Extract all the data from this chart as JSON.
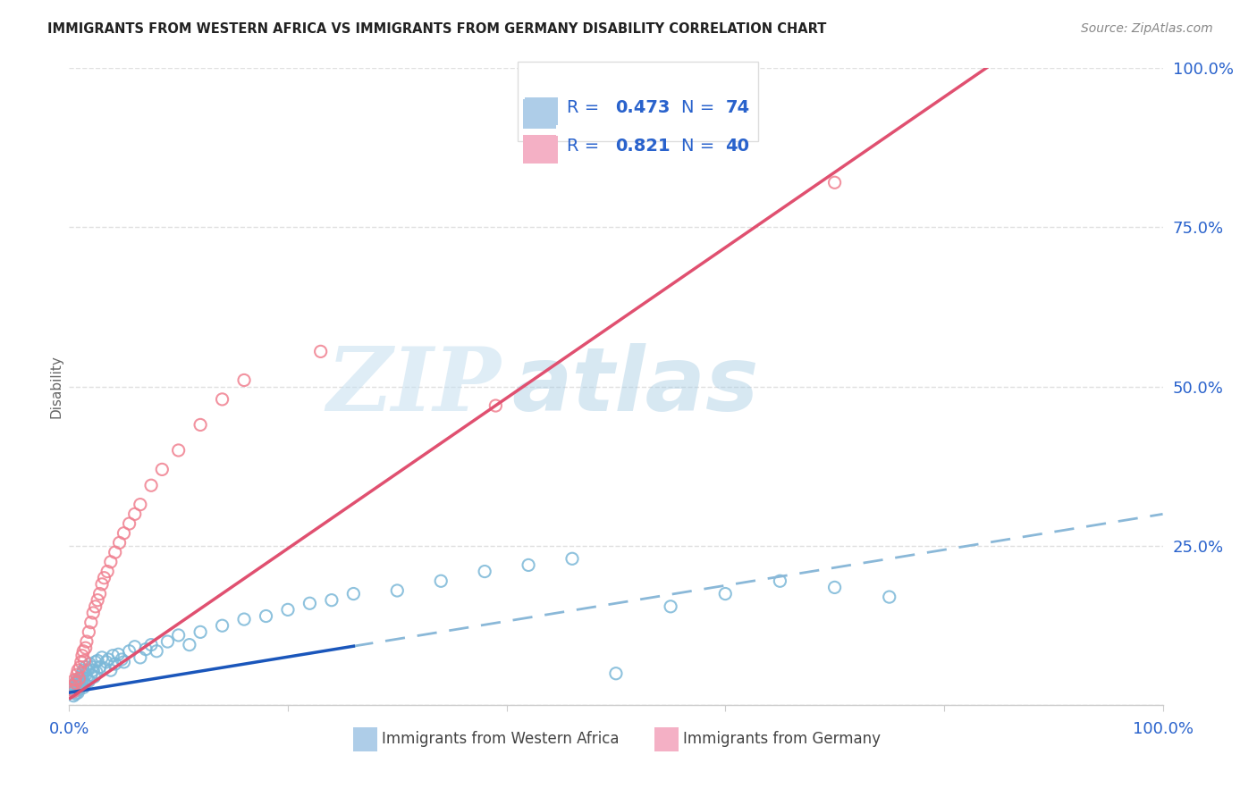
{
  "title": "IMMIGRANTS FROM WESTERN AFRICA VS IMMIGRANTS FROM GERMANY DISABILITY CORRELATION CHART",
  "source": "Source: ZipAtlas.com",
  "ylabel": "Disability",
  "series1_label": "Immigrants from Western Africa",
  "series1_color": "#7bb8d8",
  "series2_label": "Immigrants from Germany",
  "series2_color": "#f08090",
  "series1_R": "0.473",
  "series1_N": "74",
  "series2_R": "0.821",
  "series2_N": "40",
  "legend_text_color": "#2962cc",
  "title_color": "#222222",
  "source_color": "#888888",
  "axis_color": "#2962cc",
  "grid_color": "#e0e0e0",
  "watermark_zip": "ZIP",
  "watermark_atlas": "atlas",
  "watermark_color_zip": "#c8dff0",
  "watermark_color_atlas": "#b0d0e8",
  "line1_solid_color": "#1a56bb",
  "line1_dash_color": "#8ab8d8",
  "line2_color": "#e05070",
  "line1_slope": 0.28,
  "line1_intercept": 0.02,
  "line2_slope": 1.18,
  "line2_intercept": 0.01,
  "line1_solid_end": 0.26,
  "line1_dash_end": 1.0,
  "line2_end": 0.84,
  "xlim": [
    0,
    1.0
  ],
  "ylim": [
    0,
    1.0
  ],
  "blue_x": [
    0.002,
    0.003,
    0.004,
    0.005,
    0.005,
    0.006,
    0.006,
    0.007,
    0.007,
    0.008,
    0.008,
    0.009,
    0.009,
    0.01,
    0.01,
    0.011,
    0.011,
    0.012,
    0.012,
    0.013,
    0.013,
    0.014,
    0.015,
    0.015,
    0.016,
    0.017,
    0.018,
    0.019,
    0.02,
    0.021,
    0.022,
    0.023,
    0.024,
    0.025,
    0.026,
    0.028,
    0.03,
    0.032,
    0.034,
    0.036,
    0.038,
    0.04,
    0.042,
    0.045,
    0.048,
    0.05,
    0.055,
    0.06,
    0.065,
    0.07,
    0.075,
    0.08,
    0.09,
    0.1,
    0.11,
    0.12,
    0.14,
    0.16,
    0.18,
    0.2,
    0.22,
    0.24,
    0.26,
    0.3,
    0.34,
    0.38,
    0.42,
    0.46,
    0.5,
    0.55,
    0.6,
    0.65,
    0.7,
    0.75
  ],
  "blue_y": [
    0.02,
    0.025,
    0.015,
    0.03,
    0.022,
    0.035,
    0.018,
    0.028,
    0.04,
    0.032,
    0.02,
    0.038,
    0.025,
    0.042,
    0.03,
    0.045,
    0.035,
    0.038,
    0.05,
    0.028,
    0.055,
    0.032,
    0.048,
    0.06,
    0.042,
    0.055,
    0.038,
    0.065,
    0.048,
    0.06,
    0.055,
    0.045,
    0.068,
    0.052,
    0.07,
    0.06,
    0.075,
    0.058,
    0.068,
    0.072,
    0.055,
    0.078,
    0.065,
    0.08,
    0.072,
    0.068,
    0.085,
    0.092,
    0.075,
    0.088,
    0.095,
    0.085,
    0.1,
    0.11,
    0.095,
    0.115,
    0.125,
    0.135,
    0.14,
    0.15,
    0.16,
    0.165,
    0.175,
    0.18,
    0.195,
    0.21,
    0.22,
    0.23,
    0.05,
    0.155,
    0.175,
    0.195,
    0.185,
    0.17
  ],
  "pink_x": [
    0.002,
    0.003,
    0.004,
    0.005,
    0.006,
    0.007,
    0.008,
    0.009,
    0.01,
    0.011,
    0.012,
    0.013,
    0.014,
    0.015,
    0.016,
    0.018,
    0.02,
    0.022,
    0.024,
    0.026,
    0.028,
    0.03,
    0.032,
    0.035,
    0.038,
    0.042,
    0.046,
    0.05,
    0.055,
    0.06,
    0.065,
    0.075,
    0.085,
    0.1,
    0.12,
    0.14,
    0.16,
    0.23,
    0.39,
    0.7
  ],
  "pink_y": [
    0.025,
    0.03,
    0.022,
    0.04,
    0.035,
    0.048,
    0.055,
    0.042,
    0.06,
    0.068,
    0.078,
    0.085,
    0.07,
    0.09,
    0.1,
    0.115,
    0.13,
    0.145,
    0.155,
    0.165,
    0.175,
    0.19,
    0.2,
    0.21,
    0.225,
    0.24,
    0.255,
    0.27,
    0.285,
    0.3,
    0.315,
    0.345,
    0.37,
    0.4,
    0.44,
    0.48,
    0.51,
    0.555,
    0.47,
    0.82
  ]
}
